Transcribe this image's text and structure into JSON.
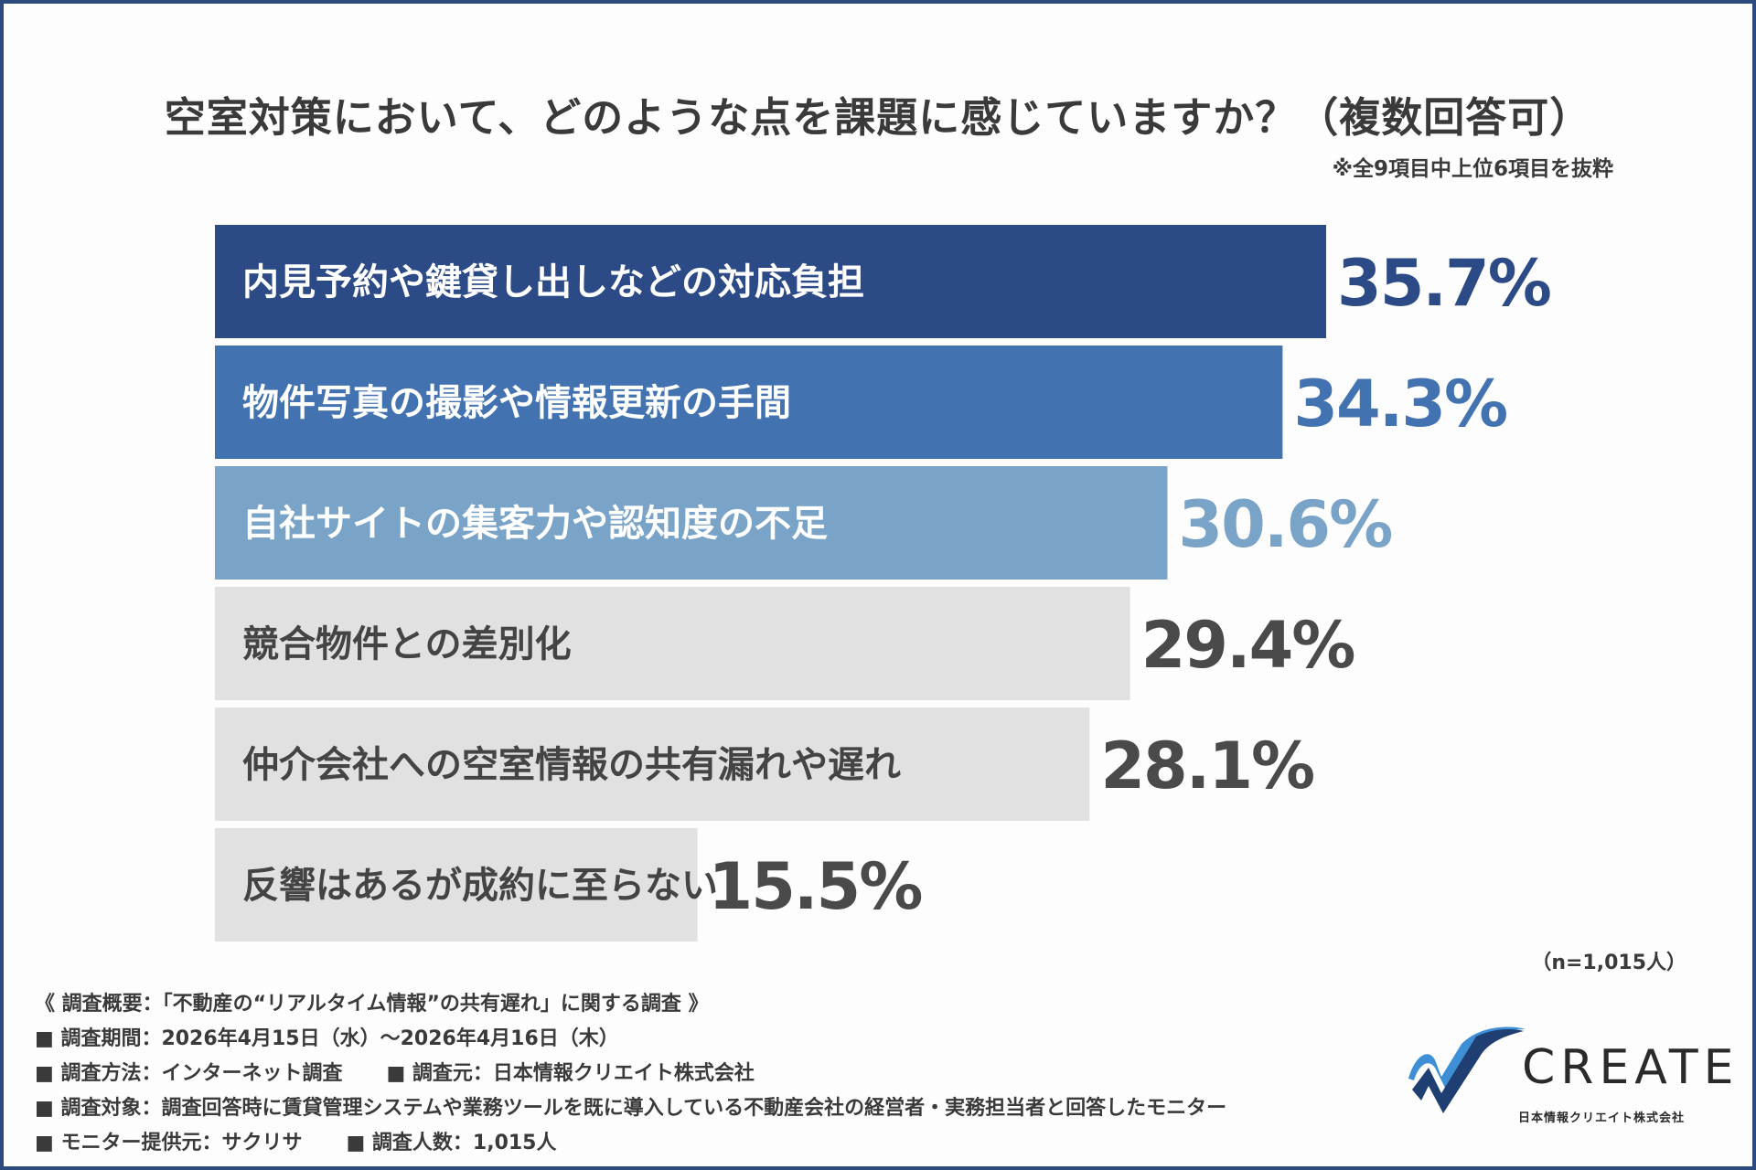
{
  "title": "空室対策において、どのような点を課題に感じていますか？（複数回答可）",
  "note": "※全9項目中上位6項目を抜粋",
  "sample_size": "（n=1,015人）",
  "colors": {
    "frame": "#2c4a7e",
    "bar_1": "#2c4a86",
    "bar_2": "#4272b0",
    "bar_3": "#7aa3c8",
    "bar_other": "#e1e1e1",
    "text_dark": "#4a4a4a"
  },
  "chart_data": {
    "type": "bar",
    "orientation": "horizontal",
    "categories": [
      "内見予約や鍵貸し出しなどの対応負担",
      "物件写真の撮影や情報更新の手間",
      "自社サイトの集客力や認知度の不足",
      "競合物件との差別化",
      "仲介会社への空室情報の共有漏れや遅れ",
      "反響はあるが成約に至らない"
    ],
    "values": [
      35.7,
      34.3,
      30.6,
      29.4,
      28.1,
      15.5
    ],
    "value_labels": [
      "35.7%",
      "34.3%",
      "30.6%",
      "29.4%",
      "28.1%",
      "15.5%"
    ],
    "unit": "%",
    "xlim": [
      0,
      35.7
    ],
    "grid": false,
    "legend": "none"
  },
  "survey": {
    "header": "《 調査概要：「不動産の“リアルタイム情報”の共有遅れ」に関する調査 》",
    "period": "■ 調査期間：2026年4月15日（水）～2026年4月16日（木）",
    "method": "■ 調査方法：インターネット調査",
    "organizer": "■ 調査元：日本情報クリエイト株式会社",
    "target": "■ 調査対象：調査回答時に賃貸管理システムや業務ツールを既に導入している不動産会社の経営者・実務担当者と回答したモニター",
    "provider": "■ モニター提供元：サクリサ",
    "respondents": "■ 調査人数：1,015人"
  },
  "logo": {
    "wordmark": "CREATE",
    "company": "日本情報クリエイト株式会社"
  }
}
